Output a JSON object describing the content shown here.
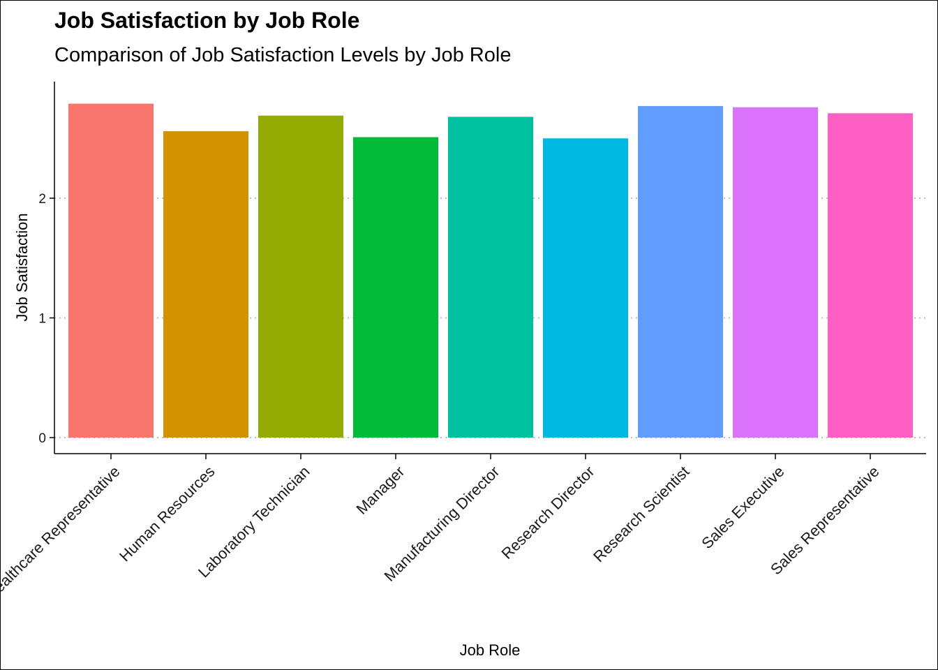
{
  "chart_data": {
    "type": "bar",
    "title": "Job Satisfaction by Job Role",
    "subtitle": "Comparison of Job Satisfaction Levels by Job Role",
    "xlabel": "Job Role",
    "ylabel": "Job Satisfaction",
    "categories": [
      "Healthcare Representative",
      "Human Resources",
      "Laboratory Technician",
      "Manager",
      "Manufacturing Director",
      "Research Director",
      "Research Scientist",
      "Sales Executive",
      "Sales Representative"
    ],
    "values": [
      2.79,
      2.56,
      2.69,
      2.51,
      2.68,
      2.5,
      2.77,
      2.76,
      2.71
    ],
    "colors": [
      "#F8766D",
      "#D39200",
      "#93AA00",
      "#00BA38",
      "#00C19F",
      "#00B9E3",
      "#619CFF",
      "#DB72FB",
      "#FF61C3"
    ],
    "yticks": [
      0,
      1,
      2
    ],
    "ylim": [
      0,
      2.9
    ],
    "grid": "horizontal dotted",
    "legend": "none"
  }
}
